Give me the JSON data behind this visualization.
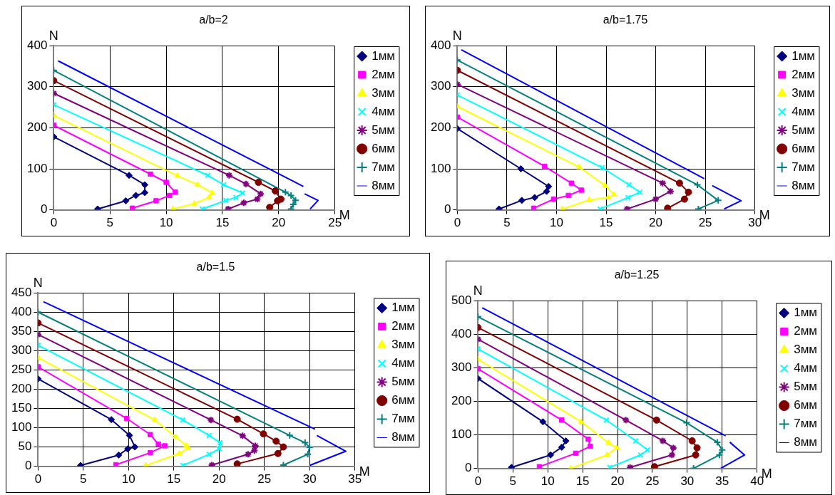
{
  "chart_data": [
    {
      "type": "line",
      "title": "a/b=2",
      "xlabel": "M",
      "ylabel": "N",
      "xlim": [
        0,
        25
      ],
      "xticks": [
        0,
        5,
        10,
        15,
        20,
        25
      ],
      "ylim": [
        0,
        400
      ],
      "yticks": [
        0,
        100,
        200,
        300,
        400
      ],
      "grid": true,
      "legend": "right",
      "line_style": "solid",
      "series": [
        {
          "name": "1мм",
          "color": "#000080",
          "marker": "diamond",
          "x": [
            0,
            6.7,
            8.1,
            8.1,
            7.3,
            6.4,
            3.9
          ],
          "values": [
            178,
            84,
            61,
            42,
            35,
            22,
            2
          ]
        },
        {
          "name": "2мм",
          "color": "#ff00ff",
          "marker": "square",
          "x": [
            0,
            8.6,
            10.0,
            10.8,
            10.3,
            9.1,
            7.0
          ],
          "values": [
            206,
            87,
            67,
            43,
            35,
            22,
            4
          ]
        },
        {
          "name": "3мм",
          "color": "#ffff00",
          "marker": "triangle",
          "x": [
            0,
            11.0,
            12.8,
            14.1,
            13.8,
            12.5,
            10.6
          ],
          "values": [
            230,
            83,
            61,
            41,
            30,
            15,
            2
          ]
        },
        {
          "name": "4мм",
          "color": "#00ffff",
          "marker": "x",
          "x": [
            0,
            13.7,
            15.1,
            16.8,
            16.2,
            15.3,
            13.2
          ],
          "values": [
            256,
            84,
            61,
            41,
            30,
            23,
            2
          ]
        },
        {
          "name": "5мм",
          "color": "#800080",
          "marker": "cross",
          "x": [
            0,
            15.6,
            17.1,
            18.4,
            18.1,
            16.9,
            15.5
          ],
          "values": [
            284,
            84,
            63,
            39,
            26,
            17,
            2
          ]
        },
        {
          "name": "6мм",
          "color": "#800000",
          "marker": "circle",
          "x": [
            0,
            18.2,
            19.7,
            20.2,
            19.9,
            19.2
          ],
          "values": [
            315,
            67,
            46,
            26,
            22,
            6
          ]
        },
        {
          "name": "7мм",
          "color": "#008080",
          "marker": "plus",
          "x": [
            0,
            20.6,
            21.1,
            21.5,
            21.3,
            21.1
          ],
          "values": [
            340,
            43,
            35,
            23,
            13,
            2
          ]
        },
        {
          "name": "8мм",
          "color": "#0000ff",
          "marker": "none",
          "x": [
            0.4,
            22.2,
            22.25,
            22.3,
            23.5,
            22.8
          ],
          "values": [
            363,
            57,
            null,
            39,
            23,
            2
          ]
        }
      ]
    },
    {
      "type": "line",
      "title": "a/b=1.75",
      "xlabel": "M",
      "ylabel": "N",
      "xlim": [
        0,
        30
      ],
      "xticks": [
        0,
        5,
        10,
        15,
        20,
        25,
        30
      ],
      "ylim": [
        0,
        400
      ],
      "yticks": [
        0,
        100,
        200,
        300,
        400
      ],
      "grid": true,
      "legend": "right",
      "line_style": "solid",
      "series": [
        {
          "name": "1мм",
          "color": "#000080",
          "marker": "diamond",
          "x": [
            0,
            6.4,
            9.2,
            9.0,
            7.8,
            6.5,
            4.2
          ],
          "values": [
            198,
            100,
            57,
            45,
            30,
            23,
            2
          ]
        },
        {
          "name": "2мм",
          "color": "#ff00ff",
          "marker": "square",
          "x": [
            0,
            8.8,
            11.5,
            12.5,
            11.2,
            9.7,
            7.7
          ],
          "values": [
            226,
            106,
            65,
            48,
            35,
            26,
            4
          ]
        },
        {
          "name": "3мм",
          "color": "#ffff00",
          "marker": "triangle",
          "x": [
            0,
            12.3,
            14.9,
            15.8,
            15.2,
            13.3,
            10.6
          ],
          "values": [
            252,
            104,
            59,
            37,
            30,
            24,
            2
          ]
        },
        {
          "name": "4мм",
          "color": "#00ffff",
          "marker": "x",
          "x": [
            0,
            14.6,
            17.3,
            18.4,
            17.2,
            14.4
          ],
          "values": [
            280,
            103,
            61,
            43,
            30,
            2
          ]
        },
        {
          "name": "5мм",
          "color": "#800080",
          "marker": "cross",
          "x": [
            0,
            20.7,
            21.5,
            20.0,
            17.1
          ],
          "values": [
            306,
            65,
            45,
            26,
            2
          ]
        },
        {
          "name": "6мм",
          "color": "#800000",
          "marker": "circle",
          "x": [
            0,
            22.4,
            23.3,
            22.9,
            21.2
          ],
          "values": [
            340,
            65,
            43,
            26,
            4
          ]
        },
        {
          "name": "7мм",
          "color": "#008080",
          "marker": "plus",
          "x": [
            0,
            24.2,
            26.3,
            24.3
          ],
          "values": [
            365,
            61,
            23,
            2
          ]
        },
        {
          "name": "8мм",
          "color": "#0000ff",
          "marker": "none",
          "x": [
            0.4,
            24.9,
            25.3,
            25.7,
            28.6,
            26.9
          ],
          "values": [
            390,
            76,
            null,
            59,
            22,
            2
          ]
        }
      ]
    },
    {
      "type": "line",
      "title": "a/b=1.5",
      "xlabel": "M",
      "ylabel": "N",
      "xlim": [
        0,
        35
      ],
      "xticks": [
        0,
        5,
        10,
        15,
        20,
        25,
        30,
        35
      ],
      "ylim": [
        0,
        450
      ],
      "yticks": [
        0,
        50,
        100,
        150,
        200,
        250,
        300,
        350,
        400,
        450
      ],
      "grid": true,
      "legend": "right",
      "line_style": "solid",
      "series": [
        {
          "name": "1мм",
          "color": "#000080",
          "marker": "diamond",
          "x": [
            0,
            8.1,
            10.1,
            10.7,
            9.9,
            8.9,
            4.7
          ],
          "values": [
            227,
            121,
            80,
            50,
            45,
            29,
            2
          ]
        },
        {
          "name": "2мм",
          "color": "#ff00ff",
          "marker": "square",
          "x": [
            0,
            9.8,
            12.4,
            13.3,
            14.0,
            12.4,
            8.6
          ],
          "values": [
            258,
            124,
            82,
            57,
            53,
            35,
            4
          ]
        },
        {
          "name": "3мм",
          "color": "#ffff00",
          "marker": "triangle",
          "x": [
            0,
            12.9,
            15.2,
            16.4,
            16.6,
            15.6,
            11.9
          ],
          "values": [
            282,
            120,
            76,
            53,
            47,
            33,
            2
          ]
        },
        {
          "name": "4мм",
          "color": "#00ffff",
          "marker": "x",
          "x": [
            0,
            16.0,
            18.9,
            20.1,
            20.0,
            18.9,
            16.0
          ],
          "values": [
            314,
            120,
            80,
            61,
            45,
            31,
            2
          ]
        },
        {
          "name": "5мм",
          "color": "#800080",
          "marker": "cross",
          "x": [
            0,
            19.1,
            22.6,
            24.0,
            23.9,
            23.2,
            19.2
          ],
          "values": [
            342,
            120,
            79,
            53,
            41,
            31,
            3
          ]
        },
        {
          "name": "6мм",
          "color": "#800000",
          "marker": "circle",
          "x": [
            0,
            22.0,
            24.9,
            26.3,
            27.1,
            26.5,
            22.0
          ],
          "values": [
            372,
            122,
            84,
            65,
            50,
            33,
            6
          ]
        },
        {
          "name": "7мм",
          "color": "#008080",
          "marker": "plus",
          "x": [
            0,
            27.8,
            29.5,
            30.0,
            29.8,
            27.1
          ],
          "values": [
            400,
            80,
            61,
            49,
            31,
            3
          ]
        },
        {
          "name": "8мм",
          "color": "#0000ff",
          "marker": "none",
          "x": [
            0.6,
            30.6,
            30.7,
            30.8,
            34.0,
            30.0
          ],
          "values": [
            427,
            96,
            null,
            80,
            39,
            2
          ]
        }
      ]
    },
    {
      "type": "line",
      "title": "a/b=1.25",
      "xlabel": "M",
      "ylabel": "N",
      "xlim": [
        0,
        40
      ],
      "xticks": [
        0,
        5,
        10,
        15,
        20,
        25,
        30,
        35,
        40
      ],
      "ylim": [
        0,
        500
      ],
      "yticks": [
        0,
        100,
        200,
        300,
        400,
        500
      ],
      "grid": true,
      "legend": "right",
      "line_style": "solid",
      "series": [
        {
          "name": "1мм",
          "color": "#000080",
          "marker": "diamond",
          "x": [
            0,
            9.3,
            12.6,
            12.0,
            10.4,
            4.8
          ],
          "values": [
            268,
            139,
            82,
            63,
            40,
            3
          ]
        },
        {
          "name": "2мм",
          "color": "#ff00ff",
          "marker": "square",
          "x": [
            0,
            12.0,
            15.8,
            16.1,
            14.0,
            8.8
          ],
          "values": [
            297,
            144,
            87,
            66,
            45,
            5
          ]
        },
        {
          "name": "3мм",
          "color": "#ffff00",
          "marker": "triangle",
          "x": [
            0,
            14.8,
            18.7,
            19.9,
            18.5,
            13.3
          ],
          "values": [
            325,
            139,
            76,
            61,
            40,
            0
          ]
        },
        {
          "name": "4мм",
          "color": "#00ffff",
          "marker": "x",
          "x": [
            0,
            18.4,
            22.6,
            24.3,
            23.3,
            18.9
          ],
          "values": [
            356,
            144,
            82,
            55,
            40,
            3
          ]
        },
        {
          "name": "5мм",
          "color": "#800080",
          "marker": "cross",
          "x": [
            0,
            21.2,
            26.5,
            28.0,
            27.8,
            21.8
          ],
          "values": [
            385,
            144,
            82,
            61,
            40,
            3
          ]
        },
        {
          "name": "6мм",
          "color": "#800000",
          "marker": "circle",
          "x": [
            0,
            25.6,
            30.7,
            31.4,
            31.2,
            25.3
          ],
          "values": [
            420,
            144,
            82,
            61,
            40,
            5
          ]
        },
        {
          "name": "7мм",
          "color": "#008080",
          "marker": "plus",
          "x": [
            0,
            29.9,
            34.3,
            35.0,
            34.6,
            30.9
          ],
          "values": [
            452,
            136,
            78,
            55,
            40,
            0
          ]
        },
        {
          "name": "8мм",
          "color": "#0000ff",
          "marker": "none",
          "x": [
            0.6,
            35.5,
            35.8,
            36.1,
            38.2,
            34.8
          ],
          "values": [
            479,
            97,
            null,
            78,
            40,
            0
          ]
        }
      ]
    }
  ]
}
